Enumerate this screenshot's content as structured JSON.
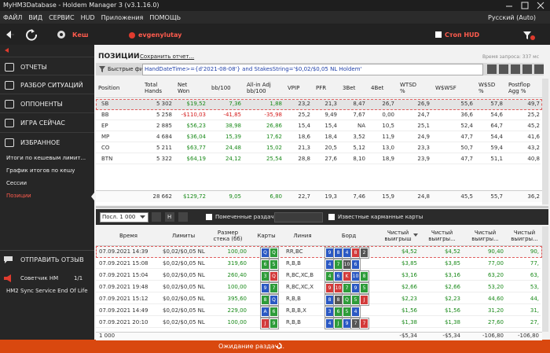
{
  "title_bar": {
    "title": "MyHM3Database - Holdem Manager 3 (v3.1.16.0)"
  },
  "menu": {
    "items": [
      "ФАЙЛ",
      "ВИД",
      "СЕРВИС",
      "HUD",
      "Приложения",
      "ПОМОЩЬ"
    ],
    "language": "Русский (Auto)"
  },
  "toolbar": {
    "cache": "Кеш",
    "player": "evgenylutay",
    "stop_hud": "Стоп HUD"
  },
  "sidebar": {
    "items": [
      "ОТЧЕТЫ",
      "РАЗБОР СИТУАЦИЙ",
      "ОППОНЕНТЫ",
      "ИГРА СЕЙЧАС",
      "ИЗБРАННОЕ"
    ],
    "subitems": [
      "Итоги по кешевым лимит...",
      "График итогов по кешу",
      "Сессии",
      "Позиции"
    ],
    "active_subitem": 3,
    "feedback": "ОТПРАВИТЬ ОТЗЫВ",
    "advisor": "Советчик HM",
    "advisor_count": "1/1",
    "notice": "HM2 Sync Service End Of Life"
  },
  "report": {
    "title": "ПОЗИЦИИ",
    "save": "Сохранить отчет...",
    "query_time": "Время запроса: 337 мс",
    "filter_label": "Быстрые фильт",
    "filter": "HandDateTime>={d'2021-08-08'} and StakesString='$0,02/$0,05 NL Holdem'"
  },
  "positions_table": {
    "columns": [
      "Position",
      "Total\nHands",
      "Net\nWon",
      "bb/100",
      "All-in Adj\nbb/100",
      "VPIP",
      "PFR",
      "3Bet",
      "4Bet",
      "WTSD\n%",
      "W$WSF",
      "W$SD\n%",
      "Postflop\nAgg %"
    ],
    "signed_columns": [
      2,
      3,
      4
    ],
    "rows": [
      [
        "SB",
        "5 302",
        "$19,52",
        "7,36",
        "1,88",
        "23,2",
        "21,3",
        "8,47",
        "26,7",
        "26,9",
        "55,6",
        "57,8",
        "49,7"
      ],
      [
        "BB",
        "5 258",
        "-$110,03",
        "-41,85",
        "-35,98",
        "25,2",
        "9,49",
        "7,67",
        "0,00",
        "24,7",
        "36,6",
        "54,6",
        "25,2"
      ],
      [
        "EP",
        "2 885",
        "$56,23",
        "38,98",
        "26,86",
        "15,4",
        "15,4",
        "NA",
        "10,5",
        "25,1",
        "52,4",
        "64,7",
        "45,2"
      ],
      [
        "MP",
        "4 684",
        "$36,04",
        "15,39",
        "17,62",
        "18,6",
        "18,4",
        "3,52",
        "11,9",
        "24,9",
        "47,7",
        "54,4",
        "41,6"
      ],
      [
        "CO",
        "5 211",
        "$63,77",
        "24,48",
        "15,02",
        "21,3",
        "20,5",
        "5,12",
        "13,0",
        "23,3",
        "50,7",
        "59,4",
        "43,2"
      ],
      [
        "BTN",
        "5 322",
        "$64,19",
        "24,12",
        "25,54",
        "28,8",
        "27,6",
        "8,10",
        "18,9",
        "23,9",
        "47,7",
        "51,1",
        "40,8"
      ]
    ],
    "totals": [
      "",
      "28 662",
      "$129,72",
      "9,05",
      "6,80",
      "22,7",
      "19,3",
      "7,46",
      "15,9",
      "24,8",
      "45,5",
      "55,7",
      "36,2"
    ]
  },
  "hands_toolbar": {
    "last": "Посл. 1 000",
    "h": "H",
    "marked": "Помеченные раздачи",
    "known": "Известные карманные карты"
  },
  "hands_table": {
    "columns": [
      "Время",
      "Лимиты",
      "Размер\nстека (бб)",
      "Карты",
      "Линия",
      "Борд",
      "Чистый\nвыигрыш",
      "Чистый\nвыигры...",
      "Чистый\nвыигры...",
      "Чистый\nвыигры..."
    ],
    "rows": [
      {
        "time": "07.09.2021 14:39",
        "stakes": "$0,02/$0,05 NL H",
        "stack": "100,00",
        "cards": [
          {
            "rank": "Q",
            "color": "#2b59c3"
          },
          {
            "rank": "Q",
            "color": "#2e9c3a"
          }
        ],
        "line": "RR,BC",
        "board": [
          {
            "rank": "9",
            "color": "#2b59c3"
          },
          {
            "rank": "8",
            "color": "#2b59c3"
          },
          {
            "rank": "4",
            "color": "#2b59c3"
          },
          {
            "rank": "8",
            "color": "#d33b3b"
          },
          {
            "rank": "2",
            "color": "#555555"
          }
        ],
        "won": [
          "$4,52",
          "$4,52",
          "90,40",
          "90,"
        ]
      },
      {
        "time": "07.09.2021 15:08",
        "stakes": "$0,02/$0,05 NL H",
        "stack": "319,60",
        "cards": [
          {
            "rank": "6",
            "color": "#2e9c3a"
          },
          {
            "rank": "5",
            "color": "#2e9c3a"
          }
        ],
        "line": "R,B,B",
        "board": [
          {
            "rank": "4",
            "color": "#2b59c3"
          },
          {
            "rank": "7",
            "color": "#2e9c3a"
          },
          {
            "rank": "10",
            "color": "#555555"
          },
          {
            "rank": "6",
            "color": "#2b59c3"
          }
        ],
        "won": [
          "$3,85",
          "$3,85",
          "77,00",
          "77,"
        ]
      },
      {
        "time": "07.09.2021 15:04",
        "stakes": "$0,02/$0,05 NL H",
        "stack": "260,40",
        "cards": [
          {
            "rank": "3",
            "color": "#2e9c3a"
          },
          {
            "rank": "Q",
            "color": "#d33b3b"
          }
        ],
        "line": "R,BC,XC,B",
        "board": [
          {
            "rank": "4",
            "color": "#2e9c3a"
          },
          {
            "rank": "6",
            "color": "#2b59c3"
          },
          {
            "rank": "K",
            "color": "#d33b3b"
          },
          {
            "rank": "10",
            "color": "#2b59c3"
          },
          {
            "rank": "8",
            "color": "#2e9c3a"
          }
        ],
        "won": [
          "$3,16",
          "$3,16",
          "63,20",
          "63,"
        ]
      },
      {
        "time": "07.09.2021 19:48",
        "stakes": "$0,02/$0,05 NL H",
        "stack": "100,00",
        "cards": [
          {
            "rank": "9",
            "color": "#2b59c3"
          },
          {
            "rank": "7",
            "color": "#2e9c3a"
          }
        ],
        "line": "R,BC,XC,X",
        "board": [
          {
            "rank": "9",
            "color": "#d33b3b"
          },
          {
            "rank": "10",
            "color": "#d33b3b"
          },
          {
            "rank": "7",
            "color": "#2e9c3a"
          },
          {
            "rank": "9",
            "color": "#2b59c3"
          },
          {
            "rank": "5",
            "color": "#2e9c3a"
          }
        ],
        "won": [
          "$2,66",
          "$2,66",
          "53,20",
          "53,"
        ]
      },
      {
        "time": "07.09.2021 15:12",
        "stakes": "$0,02/$0,05 NL H",
        "stack": "395,60",
        "cards": [
          {
            "rank": "8",
            "color": "#2e9c3a"
          },
          {
            "rank": "Q",
            "color": "#2b59c3"
          }
        ],
        "line": "R,B,B",
        "board": [
          {
            "rank": "8",
            "color": "#2b59c3"
          },
          {
            "rank": "8",
            "color": "#555555"
          },
          {
            "rank": "Q",
            "color": "#2e9c3a"
          },
          {
            "rank": "5",
            "color": "#2e9c3a"
          },
          {
            "rank": "J",
            "color": "#d33b3b"
          }
        ],
        "won": [
          "$2,23",
          "$2,23",
          "44,60",
          "44,"
        ]
      },
      {
        "time": "07.09.2021 14:49",
        "stakes": "$0,02/$0,05 NL H",
        "stack": "229,00",
        "cards": [
          {
            "rank": "A",
            "color": "#2b59c3"
          },
          {
            "rank": "6",
            "color": "#2e9c3a"
          }
        ],
        "line": "R,B,B,X",
        "board": [
          {
            "rank": "3",
            "color": "#2b59c3"
          },
          {
            "rank": "6",
            "color": "#2e9c3a"
          },
          {
            "rank": "5",
            "color": "#2e9c3a"
          },
          {
            "rank": "4",
            "color": "#2b59c3"
          }
        ],
        "won": [
          "$1,56",
          "$1,56",
          "31,20",
          "31,"
        ]
      },
      {
        "time": "07.09.2021 20:10",
        "stakes": "$0,02/$0,05 NL H",
        "stack": "100,00",
        "cards": [
          {
            "rank": "J",
            "color": "#d33b3b"
          },
          {
            "rank": "9",
            "color": "#2e9c3a"
          }
        ],
        "line": "R,B,B",
        "board": [
          {
            "rank": "4",
            "color": "#2b59c3"
          },
          {
            "rank": "J",
            "color": "#2e9c3a"
          },
          {
            "rank": "9",
            "color": "#2b59c3"
          },
          {
            "rank": "7",
            "color": "#555555"
          },
          {
            "rank": "7",
            "color": "#d33b3b"
          }
        ],
        "won": [
          "$1,38",
          "$1,38",
          "27,60",
          "27,"
        ]
      }
    ],
    "totals": {
      "count": "1 000",
      "won": [
        "-$5,34",
        "-$5,34",
        "-106,80",
        "-106,80"
      ]
    }
  },
  "status": "Ожидание раздач..."
}
